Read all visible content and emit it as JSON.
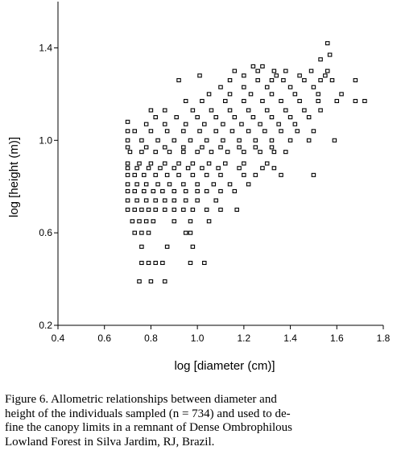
{
  "chart_data": {
    "type": "scatter",
    "title": "",
    "xlabel": "log [diameter (cm)]",
    "ylabel": "log [height (m)]",
    "xlim": [
      0.4,
      1.8
    ],
    "ylim": [
      0.2,
      1.6
    ],
    "xticks": [
      "0.4",
      "0.6",
      "0.8",
      "1.0",
      "1.2",
      "1.4",
      "1.6",
      "1.8"
    ],
    "yticks": [
      "0.2",
      "0.6",
      "1.0",
      "1.4"
    ],
    "ytick_values": [
      0.2,
      0.6,
      1.0,
      1.4
    ],
    "xtick_values": [
      0.4,
      0.6,
      0.8,
      1.0,
      1.2,
      1.4,
      1.6,
      1.8
    ],
    "grid": false,
    "legend": "none",
    "marker": "open-square",
    "n": 734,
    "points": [
      [
        0.75,
        0.39
      ],
      [
        0.8,
        0.39
      ],
      [
        0.86,
        0.39
      ],
      [
        0.76,
        0.47
      ],
      [
        0.79,
        0.47
      ],
      [
        0.82,
        0.47
      ],
      [
        0.85,
        0.47
      ],
      [
        0.97,
        0.47
      ],
      [
        1.03,
        0.47
      ],
      [
        0.76,
        0.54
      ],
      [
        0.87,
        0.54
      ],
      [
        0.98,
        0.54
      ],
      [
        0.73,
        0.6
      ],
      [
        0.76,
        0.6
      ],
      [
        0.79,
        0.6
      ],
      [
        0.95,
        0.6
      ],
      [
        0.97,
        0.6
      ],
      [
        0.72,
        0.65
      ],
      [
        0.75,
        0.65
      ],
      [
        0.78,
        0.65
      ],
      [
        0.81,
        0.65
      ],
      [
        0.9,
        0.65
      ],
      [
        0.97,
        0.65
      ],
      [
        1.05,
        0.65
      ],
      [
        0.7,
        0.7
      ],
      [
        0.73,
        0.7
      ],
      [
        0.76,
        0.7
      ],
      [
        0.79,
        0.7
      ],
      [
        0.82,
        0.7
      ],
      [
        0.86,
        0.7
      ],
      [
        0.9,
        0.7
      ],
      [
        0.94,
        0.7
      ],
      [
        0.98,
        0.7
      ],
      [
        1.04,
        0.7
      ],
      [
        1.1,
        0.7
      ],
      [
        1.17,
        0.7
      ],
      [
        0.7,
        0.74
      ],
      [
        0.74,
        0.74
      ],
      [
        0.78,
        0.74
      ],
      [
        0.82,
        0.74
      ],
      [
        0.86,
        0.74
      ],
      [
        0.9,
        0.74
      ],
      [
        0.95,
        0.74
      ],
      [
        1.0,
        0.74
      ],
      [
        1.08,
        0.74
      ],
      [
        0.7,
        0.78
      ],
      [
        0.73,
        0.78
      ],
      [
        0.77,
        0.78
      ],
      [
        0.81,
        0.78
      ],
      [
        0.85,
        0.78
      ],
      [
        0.9,
        0.78
      ],
      [
        0.95,
        0.78
      ],
      [
        1.0,
        0.78
      ],
      [
        1.04,
        0.78
      ],
      [
        1.1,
        0.78
      ],
      [
        1.16,
        0.78
      ],
      [
        0.7,
        0.81
      ],
      [
        0.74,
        0.81
      ],
      [
        0.78,
        0.81
      ],
      [
        0.83,
        0.81
      ],
      [
        0.88,
        0.81
      ],
      [
        0.94,
        0.81
      ],
      [
        1.0,
        0.81
      ],
      [
        1.07,
        0.81
      ],
      [
        1.14,
        0.81
      ],
      [
        1.22,
        0.81
      ],
      [
        0.7,
        0.85
      ],
      [
        0.73,
        0.85
      ],
      [
        0.77,
        0.85
      ],
      [
        0.82,
        0.85
      ],
      [
        0.87,
        0.85
      ],
      [
        0.92,
        0.85
      ],
      [
        0.98,
        0.85
      ],
      [
        1.04,
        0.85
      ],
      [
        1.1,
        0.85
      ],
      [
        1.2,
        0.85
      ],
      [
        1.25,
        0.85
      ],
      [
        1.36,
        0.85
      ],
      [
        1.5,
        0.85
      ],
      [
        0.7,
        0.88
      ],
      [
        0.74,
        0.88
      ],
      [
        0.79,
        0.88
      ],
      [
        0.84,
        0.88
      ],
      [
        0.9,
        0.88
      ],
      [
        0.96,
        0.88
      ],
      [
        1.02,
        0.88
      ],
      [
        1.09,
        0.88
      ],
      [
        1.18,
        0.88
      ],
      [
        1.28,
        0.88
      ],
      [
        1.33,
        0.88
      ],
      [
        0.7,
        0.9
      ],
      [
        0.75,
        0.9
      ],
      [
        0.8,
        0.9
      ],
      [
        0.86,
        0.9
      ],
      [
        0.92,
        0.9
      ],
      [
        0.98,
        0.9
      ],
      [
        1.05,
        0.9
      ],
      [
        1.12,
        0.9
      ],
      [
        1.2,
        0.9
      ],
      [
        1.3,
        0.9
      ],
      [
        0.71,
        0.95
      ],
      [
        0.76,
        0.95
      ],
      [
        0.82,
        0.95
      ],
      [
        0.88,
        0.95
      ],
      [
        0.94,
        0.95
      ],
      [
        1.0,
        0.95
      ],
      [
        1.06,
        0.95
      ],
      [
        1.13,
        0.95
      ],
      [
        1.2,
        0.95
      ],
      [
        1.27,
        0.95
      ],
      [
        1.33,
        0.95
      ],
      [
        1.38,
        0.95
      ],
      [
        0.7,
        0.97
      ],
      [
        0.78,
        0.97
      ],
      [
        0.86,
        0.97
      ],
      [
        0.94,
        0.97
      ],
      [
        1.02,
        0.97
      ],
      [
        1.1,
        0.97
      ],
      [
        1.18,
        0.97
      ],
      [
        1.25,
        0.97
      ],
      [
        1.32,
        0.97
      ],
      [
        0.7,
        1.0
      ],
      [
        0.76,
        1.0
      ],
      [
        0.83,
        1.0
      ],
      [
        0.9,
        1.0
      ],
      [
        0.97,
        1.0
      ],
      [
        1.04,
        1.0
      ],
      [
        1.11,
        1.0
      ],
      [
        1.18,
        1.0
      ],
      [
        1.25,
        1.0
      ],
      [
        1.32,
        1.0
      ],
      [
        1.4,
        1.0
      ],
      [
        1.48,
        1.0
      ],
      [
        1.59,
        1.0
      ],
      [
        0.73,
        1.04
      ],
      [
        0.8,
        1.04
      ],
      [
        0.87,
        1.04
      ],
      [
        0.94,
        1.04
      ],
      [
        1.01,
        1.04
      ],
      [
        1.08,
        1.04
      ],
      [
        1.15,
        1.04
      ],
      [
        1.22,
        1.04
      ],
      [
        1.29,
        1.04
      ],
      [
        1.36,
        1.04
      ],
      [
        1.43,
        1.04
      ],
      [
        1.5,
        1.04
      ],
      [
        0.7,
        1.04
      ],
      [
        0.78,
        1.07
      ],
      [
        0.86,
        1.07
      ],
      [
        0.95,
        1.07
      ],
      [
        1.03,
        1.07
      ],
      [
        1.11,
        1.07
      ],
      [
        1.19,
        1.07
      ],
      [
        1.27,
        1.07
      ],
      [
        1.35,
        1.07
      ],
      [
        1.42,
        1.07
      ],
      [
        0.7,
        1.08
      ],
      [
        0.82,
        1.1
      ],
      [
        0.91,
        1.1
      ],
      [
        1.0,
        1.1
      ],
      [
        1.08,
        1.1
      ],
      [
        1.16,
        1.1
      ],
      [
        1.24,
        1.1
      ],
      [
        1.32,
        1.1
      ],
      [
        1.4,
        1.1
      ],
      [
        1.48,
        1.1
      ],
      [
        0.8,
        1.13
      ],
      [
        0.86,
        1.13
      ],
      [
        0.98,
        1.13
      ],
      [
        1.06,
        1.13
      ],
      [
        1.14,
        1.13
      ],
      [
        1.22,
        1.13
      ],
      [
        1.3,
        1.13
      ],
      [
        1.38,
        1.13
      ],
      [
        1.46,
        1.13
      ],
      [
        1.53,
        1.13
      ],
      [
        0.95,
        1.17
      ],
      [
        1.02,
        1.17
      ],
      [
        1.12,
        1.17
      ],
      [
        1.2,
        1.17
      ],
      [
        1.28,
        1.17
      ],
      [
        1.36,
        1.17
      ],
      [
        1.44,
        1.17
      ],
      [
        1.52,
        1.17
      ],
      [
        1.6,
        1.17
      ],
      [
        1.68,
        1.17
      ],
      [
        1.72,
        1.17
      ],
      [
        1.05,
        1.2
      ],
      [
        1.14,
        1.2
      ],
      [
        1.23,
        1.2
      ],
      [
        1.32,
        1.2
      ],
      [
        1.42,
        1.2
      ],
      [
        1.52,
        1.2
      ],
      [
        1.62,
        1.2
      ],
      [
        1.1,
        1.23
      ],
      [
        1.2,
        1.23
      ],
      [
        1.3,
        1.23
      ],
      [
        1.4,
        1.23
      ],
      [
        1.5,
        1.23
      ],
      [
        0.92,
        1.26
      ],
      [
        1.14,
        1.26
      ],
      [
        1.26,
        1.26
      ],
      [
        1.32,
        1.26
      ],
      [
        1.37,
        1.26
      ],
      [
        1.46,
        1.26
      ],
      [
        1.53,
        1.26
      ],
      [
        1.58,
        1.26
      ],
      [
        1.68,
        1.26
      ],
      [
        1.01,
        1.28
      ],
      [
        1.2,
        1.28
      ],
      [
        1.34,
        1.28
      ],
      [
        1.44,
        1.28
      ],
      [
        1.55,
        1.28
      ],
      [
        1.16,
        1.3
      ],
      [
        1.26,
        1.3
      ],
      [
        1.33,
        1.3
      ],
      [
        1.38,
        1.3
      ],
      [
        1.49,
        1.3
      ],
      [
        1.56,
        1.3
      ],
      [
        1.24,
        1.32
      ],
      [
        1.28,
        1.32
      ],
      [
        1.53,
        1.35
      ],
      [
        1.57,
        1.37
      ],
      [
        1.56,
        1.42
      ]
    ]
  },
  "caption": {
    "line1": "Figure 6. Allometric relationships between diameter and",
    "line2": "height of the individuals sampled (n = 734) and used to de-",
    "line3": "fine the canopy limits in a remnant of Dense Ombrophilous",
    "line4": "Lowland Forest in Silva Jardim, RJ, Brazil."
  }
}
